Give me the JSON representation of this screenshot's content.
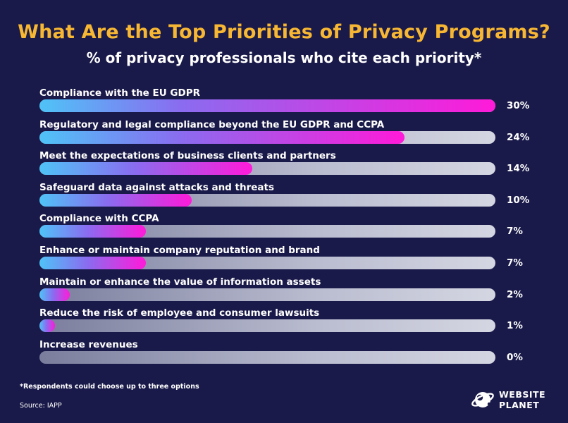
{
  "title": "What Are the Top Priorities of Privacy Programs?",
  "subtitle": "% of privacy professionals who cite each priority*",
  "colors": {
    "background": "#1a1a4a",
    "title": "#f7b733",
    "bar_gradient_start": "#4fc3f7",
    "bar_gradient_end": "#ff1ad9",
    "track": "#c9cbd9"
  },
  "chart_data": {
    "type": "bar",
    "orientation": "horizontal",
    "title": "What Are the Top Priorities of Privacy Programs?",
    "subtitle": "% of privacy professionals who cite each priority*",
    "xlim": [
      0,
      30
    ],
    "grid": false,
    "categories": [
      "Compliance with the EU GDPR",
      "Regulatory and legal compliance beyond the EU GDPR and CCPA",
      "Meet the expectations of business clients and partners",
      "Safeguard data against attacks and threats",
      "Compliance with CCPA",
      "Enhance or maintain company reputation and brand",
      "Maintain or enhance the value of information assets",
      "Reduce the risk of employee and consumer lawsuits",
      "Increase revenues"
    ],
    "values": [
      30,
      24,
      14,
      10,
      7,
      7,
      2,
      1,
      0
    ],
    "value_labels": [
      "30%",
      "24%",
      "14%",
      "10%",
      "7%",
      "7%",
      "2%",
      "1%",
      "0%"
    ]
  },
  "footnote": "*Respondents could choose up to three options",
  "source": "Source: IAPP",
  "logo": {
    "line1": "WEBSITE",
    "line2": "PLANET"
  }
}
